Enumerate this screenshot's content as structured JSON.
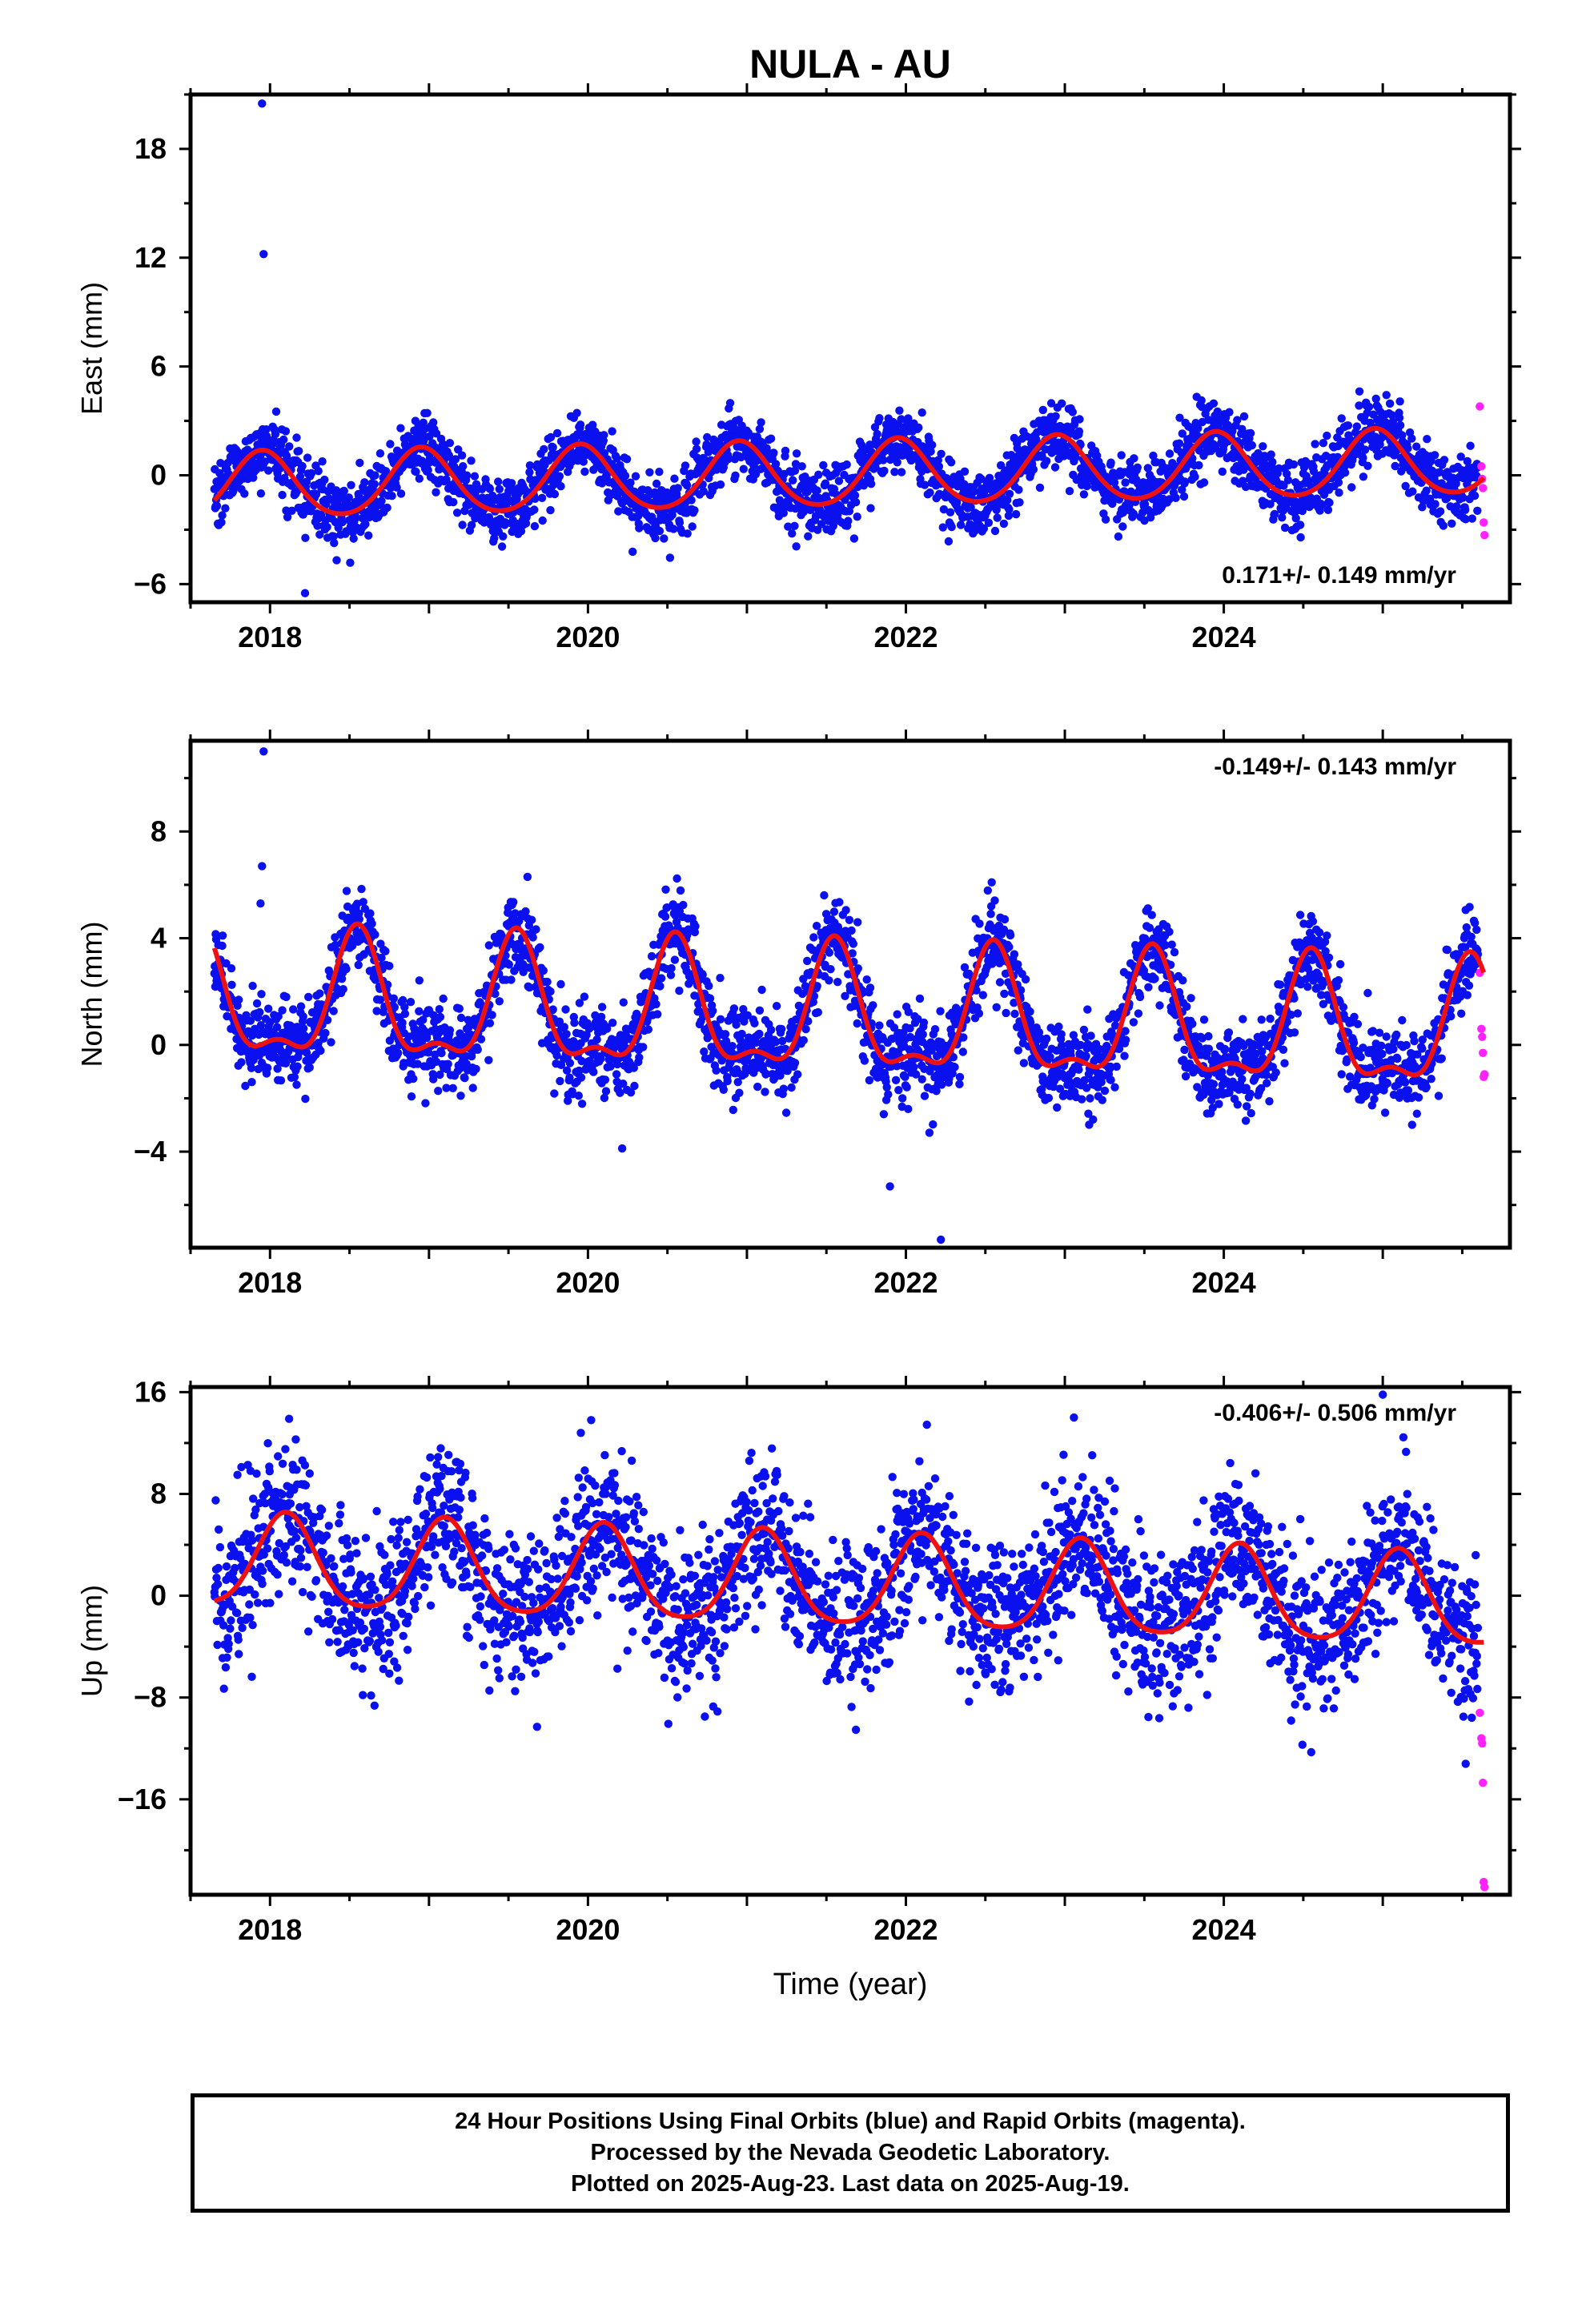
{
  "title": "NULA - AU",
  "xlabel": "Time (year)",
  "colors": {
    "final_orbits": "#0a10ee",
    "rapid_orbits": "#ff22ff",
    "model_fit": "#ee1111",
    "frame": "#000000"
  },
  "footer": {
    "line1": "24 Hour Positions Using Final Orbits (blue) and Rapid Orbits (magenta).",
    "line2": "Processed by the Nevada Geodetic Laboratory.",
    "line3": "Plotted on 2025-Aug-23. Last data on 2025-Aug-19."
  },
  "chart_data": [
    {
      "type": "scatter",
      "panel": "east",
      "ylabel": "East (mm)",
      "xlim": [
        2017.5,
        2025.8
      ],
      "ylim": [
        -7,
        21
      ],
      "xticks": [
        2018,
        2020,
        2022,
        2024
      ],
      "yticks": [
        -6,
        0,
        6,
        12,
        18
      ],
      "grid": false,
      "rate_text": "0.171+/- 0.149 mm/yr",
      "rate_position": "bottom-right",
      "data_span": [
        2017.65,
        2025.6
      ],
      "model": {
        "offset": 0.0,
        "trend_mm_per_yr": 0.171,
        "annual_amplitude": 1.8,
        "annual_peak_year_fraction": 0.95,
        "semiannual_amplitude": 0.2,
        "noise_sd": 0.9
      },
      "outliers": [
        [
          2017.95,
          20.5
        ],
        [
          2017.96,
          12.2
        ],
        [
          2018.22,
          -6.5
        ]
      ],
      "rapid_points": [
        [
          2025.61,
          3.8
        ],
        [
          2025.62,
          0.5
        ],
        [
          2025.625,
          -0.2
        ],
        [
          2025.63,
          -0.7
        ],
        [
          2025.635,
          -2.6
        ],
        [
          2025.64,
          -3.3
        ]
      ]
    },
    {
      "type": "scatter",
      "panel": "north",
      "ylabel": "North (mm)",
      "xlim": [
        2017.5,
        2025.8
      ],
      "ylim": [
        -7.6,
        11.4
      ],
      "xticks": [
        2018,
        2020,
        2022,
        2024
      ],
      "yticks": [
        -4,
        0,
        4,
        8
      ],
      "grid": false,
      "rate_text": "-0.149+/- 0.143 mm/yr",
      "rate_position": "top-right",
      "data_span": [
        2017.65,
        2025.6
      ],
      "model": {
        "offset": 1.0,
        "trend_mm_per_yr": -0.149,
        "annual_amplitude": 2.2,
        "annual_peak_year_fraction": 0.55,
        "semiannual_amplitude": 0.9,
        "noise_sd": 0.8
      },
      "outliers": [
        [
          2017.96,
          11.0
        ],
        [
          2017.95,
          6.7
        ],
        [
          2017.94,
          5.3
        ],
        [
          2019.62,
          6.3
        ],
        [
          2022.22,
          -7.3
        ],
        [
          2021.9,
          -5.3
        ]
      ],
      "rapid_points": [
        [
          2025.61,
          2.7
        ],
        [
          2025.62,
          0.6
        ],
        [
          2025.625,
          0.3
        ],
        [
          2025.63,
          -0.3
        ],
        [
          2025.635,
          -1.2
        ],
        [
          2025.64,
          -1.1
        ]
      ]
    },
    {
      "type": "scatter",
      "panel": "up",
      "ylabel": "Up (mm)",
      "xlim": [
        2017.5,
        2025.8
      ],
      "ylim": [
        -23.5,
        16.4
      ],
      "xticks": [
        2018,
        2020,
        2022,
        2024
      ],
      "yticks": [
        -16,
        -8,
        0,
        8,
        16
      ],
      "grid": false,
      "rate_text": "-0.406+/- 0.506 mm/yr",
      "rate_position": "top-right",
      "data_span": [
        2017.65,
        2025.6
      ],
      "model": {
        "offset": 1.0,
        "trend_mm_per_yr": -0.406,
        "annual_amplitude": 3.6,
        "annual_peak_year_fraction": 0.1,
        "semiannual_amplitude": 0.6,
        "noise_sd": 3.0
      },
      "outliers": [
        [
          2025.0,
          15.8
        ],
        [
          2020.02,
          13.8
        ],
        [
          2018.12,
          13.9
        ],
        [
          2019.68,
          -10.3
        ],
        [
          2024.55,
          -12.3
        ]
      ],
      "rapid_points": [
        [
          2025.61,
          -9.2
        ],
        [
          2025.62,
          -11.2
        ],
        [
          2025.625,
          -11.6
        ],
        [
          2025.63,
          -14.7
        ],
        [
          2025.635,
          -22.5
        ],
        [
          2025.64,
          -22.9
        ]
      ]
    }
  ]
}
